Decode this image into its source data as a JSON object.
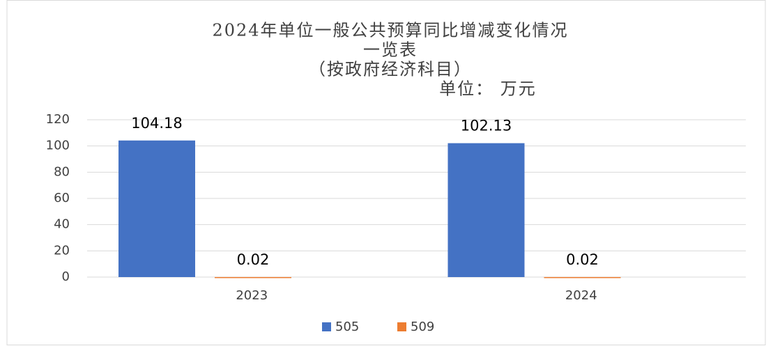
{
  "chart_data": {
    "type": "bar",
    "title": [
      "2024年单位一般公共预算同比增减变化情况",
      "一览表",
      "（按政府经济科目）"
    ],
    "subtitle": "单位： 万元",
    "categories": [
      "2023",
      "2024"
    ],
    "series": [
      {
        "name": "505",
        "color": "#4472c4",
        "values": [
          104.18,
          102.13
        ]
      },
      {
        "name": "509",
        "color": "#ed7d31",
        "values": [
          0.02,
          0.02
        ]
      }
    ],
    "ylim": [
      0,
      120
    ],
    "yticks": [
      0,
      20,
      40,
      60,
      80,
      100,
      120
    ],
    "grid": true,
    "legend": "bottom"
  }
}
